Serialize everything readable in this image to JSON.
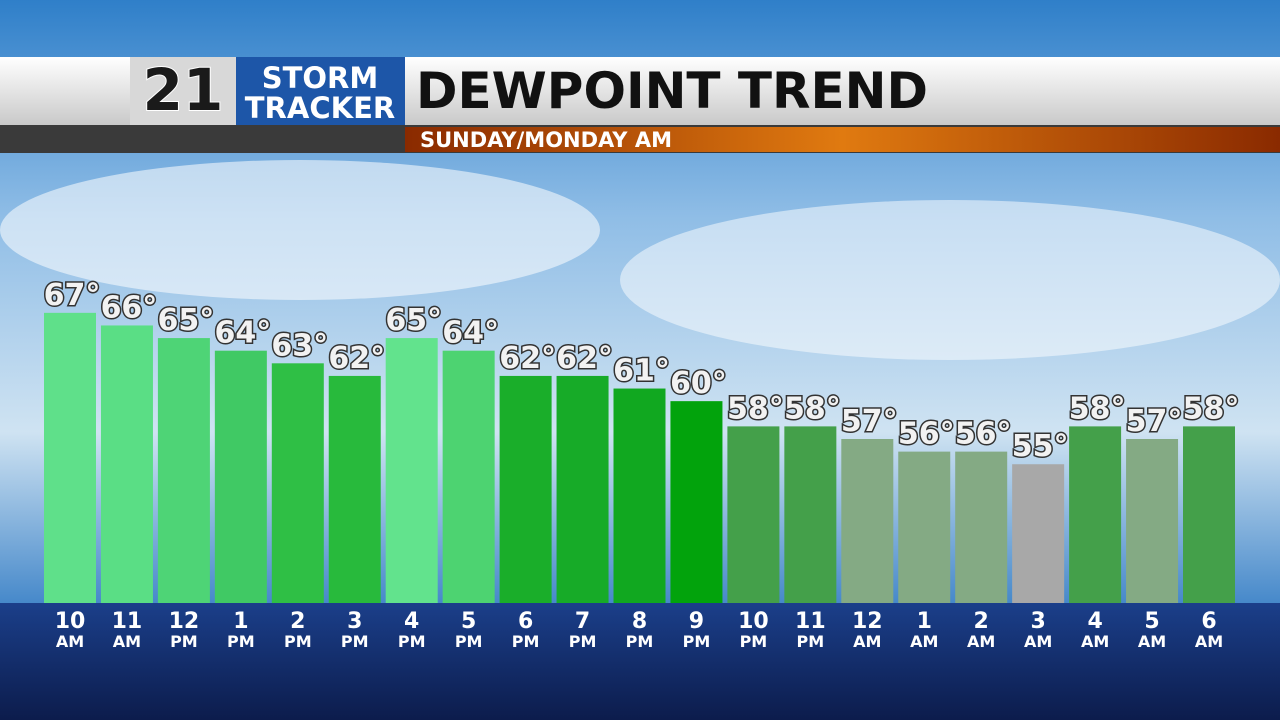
{
  "brand": {
    "number": "21",
    "line1": "STORM",
    "line2": "TRACKER"
  },
  "chart_data": {
    "type": "bar",
    "title": "DEWPOINT TREND",
    "subtitle": "SUNDAY/MONDAY AM",
    "categories": [
      "10 AM",
      "11 AM",
      "12 PM",
      "1 PM",
      "2 PM",
      "3 PM",
      "4 PM",
      "5 PM",
      "6 PM",
      "7 PM",
      "8 PM",
      "9 PM",
      "10 PM",
      "11 PM",
      "12 AM",
      "1 AM",
      "2 AM",
      "3 AM",
      "4 AM",
      "5 AM",
      "6 AM"
    ],
    "values": [
      67,
      66,
      65,
      64,
      63,
      62,
      65,
      64,
      62,
      62,
      61,
      60,
      58,
      58,
      57,
      56,
      56,
      55,
      58,
      57,
      58
    ],
    "value_labels": [
      "67°",
      "66°",
      "65°",
      "64°",
      "63°",
      "62°",
      "65°",
      "64°",
      "62°",
      "62°",
      "61°",
      "60°",
      "58°",
      "58°",
      "57°",
      "56°",
      "56°",
      "55°",
      "58°",
      "57°",
      "58°"
    ],
    "colors": [
      "#5fe08a",
      "#5ade85",
      "#4ed476",
      "#40c964",
      "#2fbf45",
      "#28ba3c",
      "#62e38d",
      "#4dd371",
      "#1aae2a",
      "#17ab28",
      "#11a820",
      "#02a30c",
      "#44a04a",
      "#44a04a",
      "#84aa84",
      "#84aa84",
      "#84aa84",
      "#a8a8a8",
      "#44a04a",
      "#84aa84",
      "#44a04a"
    ],
    "ylim": [
      44,
      70
    ]
  }
}
